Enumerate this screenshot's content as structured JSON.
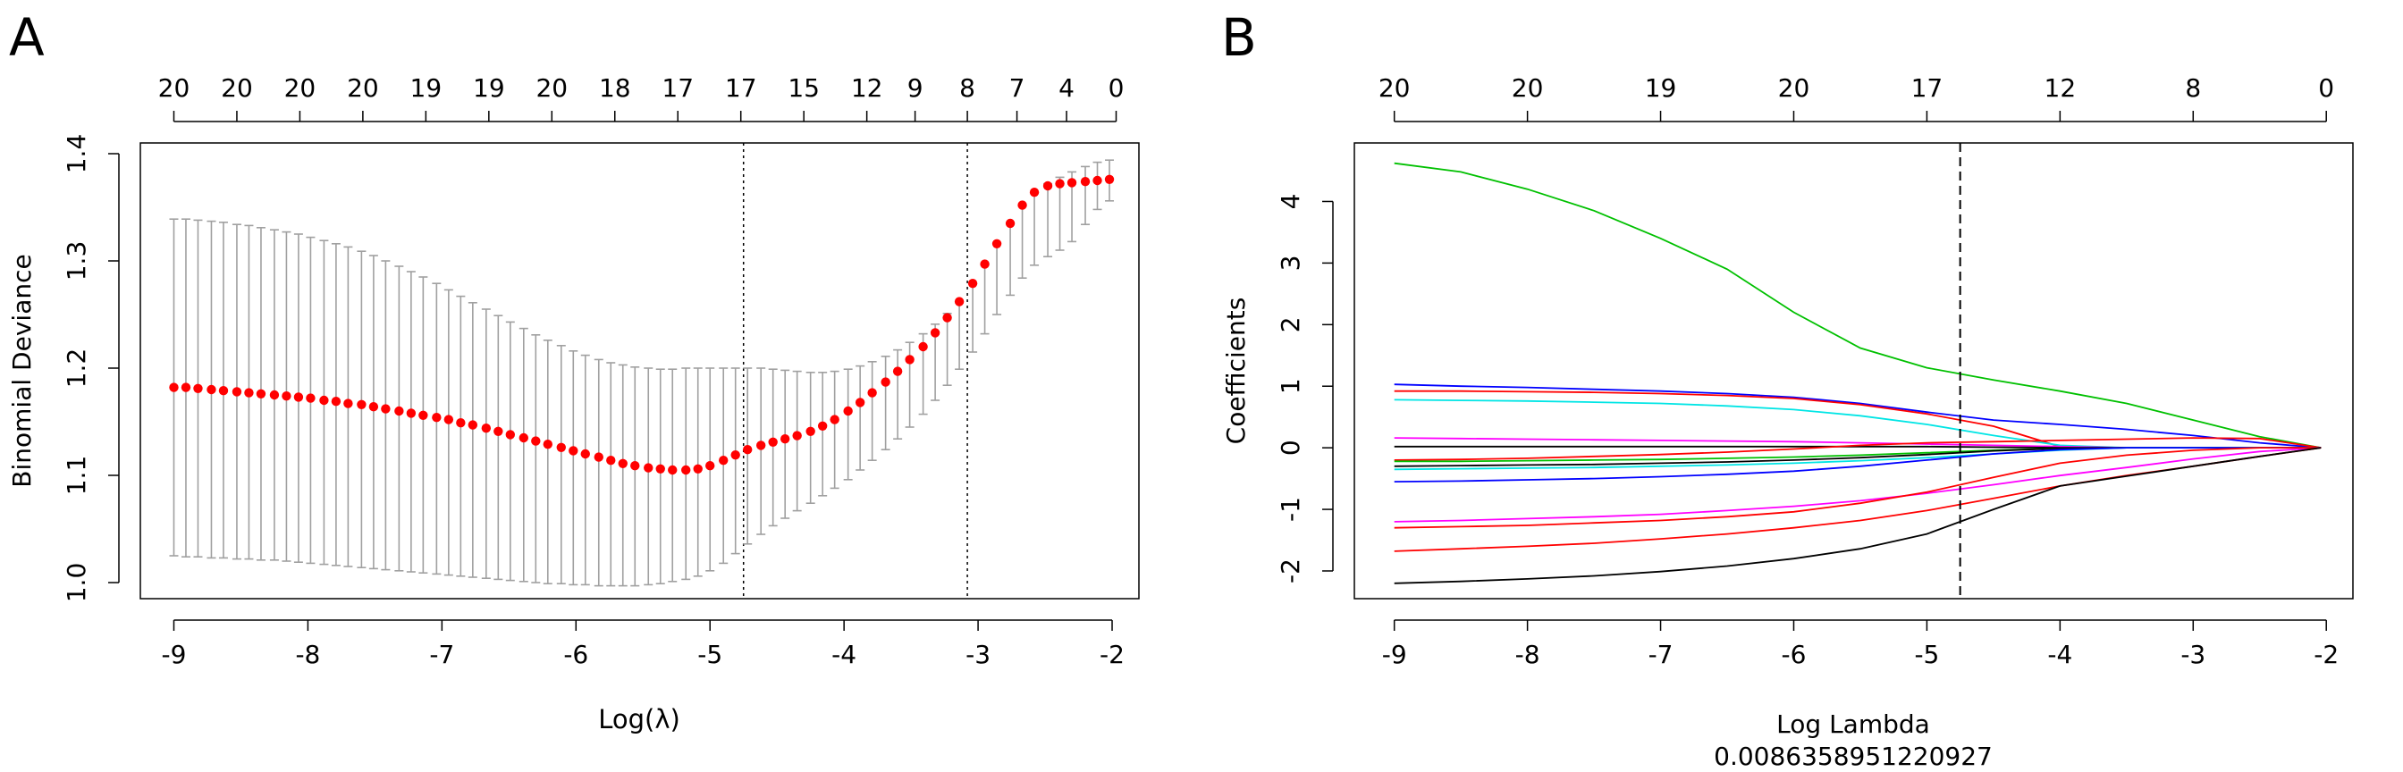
{
  "panels": {
    "a": {
      "letter": "A",
      "x_tick_labels": [
        "-9",
        "-8",
        "-7",
        "-6",
        "-5",
        "-4",
        "-3",
        "-2"
      ],
      "y_tick_labels": [
        "1.0",
        "1.1",
        "1.2",
        "1.3",
        "1.4"
      ],
      "top_count_labels": [
        "20",
        "20",
        "20",
        "20",
        "19",
        "19",
        "20",
        "18",
        "17",
        "17",
        "15",
        "12",
        "9",
        "8",
        "7",
        "4",
        "0"
      ]
    },
    "b": {
      "letter": "B",
      "x_tick_labels": [
        "-9",
        "-8",
        "-7",
        "-6",
        "-5",
        "-4",
        "-3",
        "-2"
      ],
      "y_tick_labels": [
        "-2",
        "-1",
        "0",
        "1",
        "2",
        "3",
        "4"
      ],
      "top_count_labels": [
        "20",
        "20",
        "19",
        "20",
        "17",
        "12",
        "8",
        "0"
      ],
      "lambda_value": "0.0086358951220927"
    }
  },
  "chart_data": [
    {
      "type": "scatter",
      "panel": "A",
      "title": "",
      "xlabel": "Log(λ)",
      "ylabel": "Binomial Deviance",
      "xlim": [
        -9.25,
        -1.8
      ],
      "ylim": [
        0.985,
        1.41
      ],
      "x_ticks": [
        -9,
        -8,
        -7,
        -6,
        -5,
        -4,
        -3,
        -2
      ],
      "y_ticks": [
        1.0,
        1.1,
        1.2,
        1.3,
        1.4
      ],
      "top_axis_x": [
        -9.0,
        -8.53,
        -8.06,
        -7.59,
        -7.12,
        -6.65,
        -6.18,
        -5.71,
        -5.24,
        -4.77,
        -4.3,
        -3.83,
        -3.47,
        -3.08,
        -2.71,
        -2.34,
        -1.97
      ],
      "top_axis_labels": [
        20,
        20,
        20,
        20,
        19,
        19,
        20,
        18,
        17,
        17,
        15,
        12,
        9,
        8,
        7,
        4,
        0
      ],
      "vlines": [
        -4.75,
        -3.08
      ],
      "marker_color": "#ff0000",
      "errorbar_color": "#a0a0a0",
      "series": [
        {
          "name": "Binomial Deviance",
          "x": [
            -9.0,
            -8.91,
            -8.82,
            -8.72,
            -8.63,
            -8.53,
            -8.44,
            -8.35,
            -8.25,
            -8.16,
            -8.07,
            -7.98,
            -7.88,
            -7.79,
            -7.7,
            -7.6,
            -7.51,
            -7.42,
            -7.32,
            -7.23,
            -7.14,
            -7.04,
            -6.95,
            -6.86,
            -6.77,
            -6.67,
            -6.58,
            -6.49,
            -6.39,
            -6.3,
            -6.21,
            -6.11,
            -6.02,
            -5.93,
            -5.83,
            -5.74,
            -5.65,
            -5.56,
            -5.46,
            -5.37,
            -5.28,
            -5.18,
            -5.09,
            -5.0,
            -4.9,
            -4.81,
            -4.72,
            -4.62,
            -4.53,
            -4.44,
            -4.35,
            -4.25,
            -4.16,
            -4.07,
            -3.97,
            -3.88,
            -3.79,
            -3.69,
            -3.6,
            -3.51,
            -3.41,
            -3.32,
            -3.23,
            -3.14,
            -3.04,
            -2.95,
            -2.86,
            -2.76,
            -2.67,
            -2.58,
            -2.48,
            -2.39,
            -2.3,
            -2.2,
            -2.11,
            -2.02
          ],
          "y": [
            1.182,
            1.182,
            1.181,
            1.18,
            1.179,
            1.178,
            1.177,
            1.176,
            1.175,
            1.174,
            1.173,
            1.172,
            1.17,
            1.169,
            1.167,
            1.166,
            1.164,
            1.162,
            1.16,
            1.158,
            1.156,
            1.154,
            1.152,
            1.149,
            1.147,
            1.144,
            1.141,
            1.138,
            1.135,
            1.132,
            1.129,
            1.126,
            1.123,
            1.12,
            1.117,
            1.114,
            1.111,
            1.109,
            1.107,
            1.106,
            1.105,
            1.105,
            1.106,
            1.109,
            1.114,
            1.119,
            1.124,
            1.128,
            1.131,
            1.134,
            1.137,
            1.141,
            1.146,
            1.152,
            1.16,
            1.168,
            1.177,
            1.187,
            1.197,
            1.208,
            1.22,
            1.233,
            1.247,
            1.262,
            1.279,
            1.297,
            1.316,
            1.335,
            1.352,
            1.364,
            1.37,
            1.372,
            1.373,
            1.374,
            1.375,
            1.376
          ],
          "lower": [
            1.025,
            1.024,
            1.024,
            1.023,
            1.023,
            1.022,
            1.022,
            1.021,
            1.021,
            1.02,
            1.019,
            1.018,
            1.017,
            1.016,
            1.015,
            1.014,
            1.013,
            1.012,
            1.011,
            1.01,
            1.009,
            1.008,
            1.007,
            1.006,
            1.005,
            1.004,
            1.003,
            1.002,
            1.001,
            1.0,
            0.999,
            0.999,
            0.998,
            0.998,
            0.997,
            0.997,
            0.997,
            0.997,
            0.998,
            0.999,
            1.001,
            1.003,
            1.006,
            1.011,
            1.018,
            1.027,
            1.036,
            1.045,
            1.053,
            1.06,
            1.067,
            1.074,
            1.081,
            1.088,
            1.096,
            1.105,
            1.114,
            1.124,
            1.134,
            1.145,
            1.157,
            1.17,
            1.184,
            1.199,
            1.215,
            1.232,
            1.25,
            1.268,
            1.284,
            1.296,
            1.304,
            1.31,
            1.318,
            1.334,
            1.348,
            1.356
          ],
          "upper": [
            1.339,
            1.339,
            1.338,
            1.337,
            1.336,
            1.334,
            1.333,
            1.331,
            1.329,
            1.327,
            1.325,
            1.322,
            1.319,
            1.316,
            1.313,
            1.309,
            1.305,
            1.3,
            1.295,
            1.29,
            1.285,
            1.279,
            1.273,
            1.267,
            1.261,
            1.255,
            1.249,
            1.243,
            1.237,
            1.231,
            1.226,
            1.221,
            1.216,
            1.212,
            1.208,
            1.205,
            1.203,
            1.201,
            1.2,
            1.199,
            1.199,
            1.2,
            1.2,
            1.2,
            1.2,
            1.2,
            1.2,
            1.2,
            1.199,
            1.198,
            1.197,
            1.196,
            1.196,
            1.197,
            1.199,
            1.202,
            1.206,
            1.211,
            1.217,
            1.224,
            1.232,
            1.241,
            1.251,
            1.262,
            1.279,
            1.297,
            1.316,
            1.335,
            1.352,
            1.364,
            1.372,
            1.378,
            1.383,
            1.388,
            1.392,
            1.394
          ]
        }
      ]
    },
    {
      "type": "line",
      "panel": "B",
      "title": "",
      "xlabel": "Log Lambda",
      "ylabel": "Coefficients",
      "xlim": [
        -9.3,
        -1.8
      ],
      "ylim": [
        -2.45,
        4.95
      ],
      "x_ticks": [
        -9,
        -8,
        -7,
        -6,
        -5,
        -4,
        -3,
        -2
      ],
      "y_ticks": [
        -2,
        -1,
        0,
        1,
        2,
        3,
        4
      ],
      "top_axis_x": [
        -9,
        -8,
        -7,
        -6,
        -5,
        -4,
        -3,
        -2
      ],
      "top_axis_labels": [
        20,
        20,
        19,
        20,
        17,
        12,
        8,
        0
      ],
      "vlines": [
        -4.75
      ],
      "lambda_min": 0.0086358951220927,
      "x": [
        -9.0,
        -8.5,
        -8.0,
        -7.5,
        -7.0,
        -6.5,
        -6.0,
        -5.5,
        -5.0,
        -4.5,
        -4.0,
        -3.5,
        -3.0,
        -2.5,
        -2.04
      ],
      "series": [
        {
          "name": "v1",
          "color": "#00c000",
          "values": [
            4.62,
            4.48,
            4.2,
            3.85,
            3.4,
            2.9,
            2.2,
            1.62,
            1.3,
            1.1,
            0.92,
            0.72,
            0.45,
            0.18,
            0.0
          ]
        },
        {
          "name": "v2",
          "color": "#0000ff",
          "values": [
            1.03,
            1.0,
            0.98,
            0.95,
            0.92,
            0.88,
            0.82,
            0.72,
            0.58,
            0.45,
            0.38,
            0.3,
            0.2,
            0.08,
            0.0
          ]
        },
        {
          "name": "v3",
          "color": "#ff0000",
          "values": [
            0.92,
            0.92,
            0.91,
            0.9,
            0.88,
            0.85,
            0.8,
            0.7,
            0.55,
            0.35,
            0.02,
            0.0,
            0.0,
            0.0,
            0.0
          ]
        },
        {
          "name": "v4",
          "color": "#00e5e5",
          "values": [
            0.78,
            0.77,
            0.76,
            0.74,
            0.72,
            0.68,
            0.62,
            0.52,
            0.38,
            0.2,
            0.04,
            0.0,
            0.0,
            0.0,
            0.0
          ]
        },
        {
          "name": "v5",
          "color": "#ff00ff",
          "values": [
            0.16,
            0.15,
            0.14,
            0.13,
            0.12,
            0.11,
            0.1,
            0.08,
            0.06,
            0.04,
            0.02,
            0.0,
            0.0,
            0.0,
            0.0
          ]
        },
        {
          "name": "v6",
          "color": "#000000",
          "values": [
            0.02,
            0.02,
            0.02,
            0.02,
            0.02,
            0.02,
            0.02,
            0.02,
            0.02,
            0.01,
            0.0,
            0.0,
            0.0,
            0.0,
            0.0
          ]
        },
        {
          "name": "v7",
          "color": "#ff0000",
          "values": [
            -0.2,
            -0.19,
            -0.17,
            -0.14,
            -0.11,
            -0.07,
            -0.02,
            0.04,
            0.08,
            0.1,
            0.12,
            0.14,
            0.16,
            0.15,
            0.0
          ]
        },
        {
          "name": "v8",
          "color": "#00c000",
          "values": [
            -0.22,
            -0.22,
            -0.21,
            -0.2,
            -0.19,
            -0.17,
            -0.15,
            -0.12,
            -0.08,
            -0.04,
            -0.01,
            0.0,
            0.0,
            0.0,
            0.0
          ]
        },
        {
          "name": "v9",
          "color": "#000000",
          "values": [
            -0.3,
            -0.29,
            -0.28,
            -0.27,
            -0.25,
            -0.23,
            -0.2,
            -0.16,
            -0.11,
            -0.05,
            -0.01,
            0.0,
            0.0,
            0.0,
            0.0
          ]
        },
        {
          "name": "v10",
          "color": "#00e5e5",
          "values": [
            -0.35,
            -0.34,
            -0.33,
            -0.32,
            -0.3,
            -0.28,
            -0.25,
            -0.21,
            -0.16,
            -0.1,
            -0.04,
            0.0,
            0.0,
            0.0,
            0.0
          ]
        },
        {
          "name": "v11",
          "color": "#0000ff",
          "values": [
            -0.55,
            -0.54,
            -0.52,
            -0.5,
            -0.47,
            -0.43,
            -0.38,
            -0.3,
            -0.2,
            -0.1,
            -0.03,
            0.0,
            0.0,
            0.0,
            0.0
          ]
        },
        {
          "name": "v12",
          "color": "#ff00ff",
          "values": [
            -1.2,
            -1.18,
            -1.15,
            -1.12,
            -1.08,
            -1.02,
            -0.95,
            -0.86,
            -0.74,
            -0.6,
            -0.45,
            -0.32,
            -0.18,
            -0.06,
            0.0
          ]
        },
        {
          "name": "v13",
          "color": "#ff0000",
          "values": [
            -1.3,
            -1.28,
            -1.26,
            -1.22,
            -1.18,
            -1.12,
            -1.04,
            -0.9,
            -0.72,
            -0.48,
            -0.25,
            -0.12,
            -0.04,
            0.0,
            0.0
          ]
        },
        {
          "name": "v14",
          "color": "#ff0000",
          "values": [
            -1.68,
            -1.64,
            -1.6,
            -1.55,
            -1.48,
            -1.4,
            -1.3,
            -1.18,
            -1.02,
            -0.82,
            -0.62,
            -0.45,
            -0.3,
            -0.14,
            0.0
          ]
        },
        {
          "name": "v15",
          "color": "#000000",
          "values": [
            -2.2,
            -2.17,
            -2.13,
            -2.08,
            -2.01,
            -1.92,
            -1.8,
            -1.64,
            -1.4,
            -1.0,
            -0.62,
            -0.46,
            -0.3,
            -0.14,
            0.0
          ]
        }
      ]
    }
  ]
}
